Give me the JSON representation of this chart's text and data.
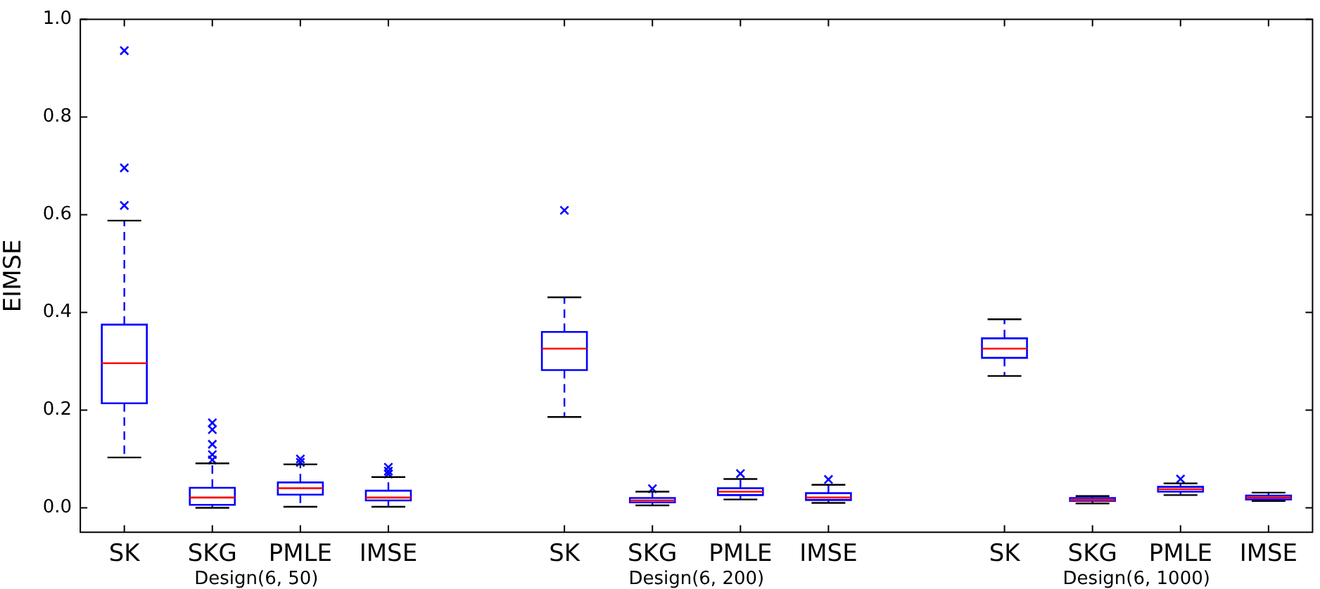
{
  "chart_data": {
    "type": "box",
    "ylabel": "EIMSE",
    "categories": [
      "SK",
      "SKG",
      "PMLE",
      "IMSE",
      null,
      "SK",
      "SKG",
      "PMLE",
      "IMSE",
      null,
      "SK",
      "SKG",
      "PMLE",
      "IMSE"
    ],
    "series": [
      {
        "color": "#0000ff",
        "boxes": [
          {
            "low": 0.103,
            "q1": 0.214,
            "median": 0.296,
            "q3": 0.375,
            "high": 0.588,
            "outliers": [
              0.619,
              0.696,
              0.936
            ]
          },
          {
            "low": 0.0,
            "q1": 0.006,
            "median": 0.021,
            "q3": 0.041,
            "high": 0.091,
            "outliers": [
              0.098,
              0.109,
              0.13,
              0.16,
              0.174
            ]
          },
          {
            "low": 0.002,
            "q1": 0.027,
            "median": 0.04,
            "q3": 0.052,
            "high": 0.089,
            "outliers": [
              0.093,
              0.1
            ]
          },
          {
            "low": 0.002,
            "q1": 0.015,
            "median": 0.021,
            "q3": 0.035,
            "high": 0.063,
            "outliers": [
              0.069,
              0.075,
              0.083
            ]
          },
          null,
          {
            "low": 0.186,
            "q1": 0.282,
            "median": 0.326,
            "q3": 0.36,
            "high": 0.431,
            "outliers": [
              0.609
            ]
          },
          {
            "low": 0.005,
            "q1": 0.011,
            "median": 0.015,
            "q3": 0.02,
            "high": 0.033,
            "outliers": [
              0.039
            ]
          },
          {
            "low": 0.017,
            "q1": 0.026,
            "median": 0.033,
            "q3": 0.04,
            "high": 0.059,
            "outliers": [
              0.07
            ]
          },
          {
            "low": 0.01,
            "q1": 0.016,
            "median": 0.021,
            "q3": 0.03,
            "high": 0.047,
            "outliers": [
              0.058
            ]
          },
          null,
          {
            "low": 0.27,
            "q1": 0.307,
            "median": 0.326,
            "q3": 0.347,
            "high": 0.386
          },
          {
            "low": 0.009,
            "q1": 0.014,
            "median": 0.016,
            "q3": 0.02,
            "high": 0.024
          },
          {
            "low": 0.026,
            "q1": 0.033,
            "median": 0.038,
            "q3": 0.043,
            "high": 0.05,
            "outliers": [
              0.059
            ]
          },
          {
            "low": 0.014,
            "q1": 0.017,
            "median": 0.021,
            "q3": 0.025,
            "high": 0.031
          }
        ]
      }
    ],
    "ylim": [
      -0.05,
      1.0
    ],
    "yticks": [
      {
        "value": 0,
        "label": "0.0"
      },
      {
        "value": 0.2,
        "label": "0.2"
      },
      {
        "value": 0.4,
        "label": "0.4"
      },
      {
        "value": 0.6,
        "label": "0.6"
      },
      {
        "value": 0.8,
        "label": "0.8"
      },
      {
        "value": 1.0,
        "label": "1.0"
      }
    ],
    "grid": false,
    "legend": false,
    "annotations": [
      "Design(6, 50)",
      "Design(6, 200)",
      "Design(6, 1000)"
    ]
  }
}
